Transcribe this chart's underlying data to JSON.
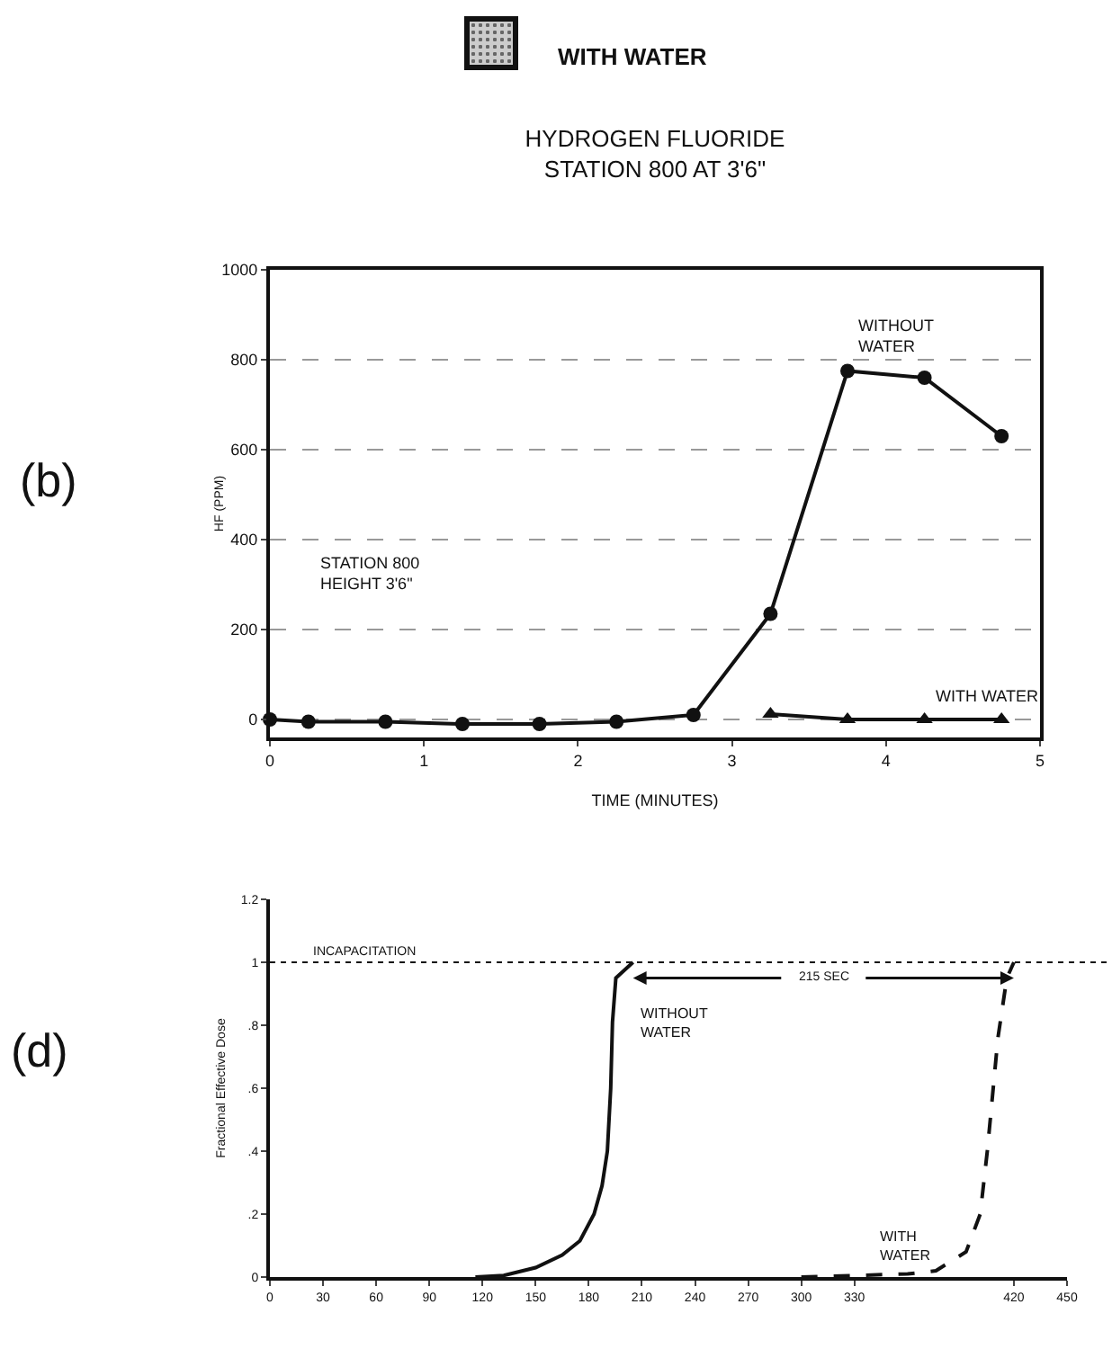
{
  "chart_data": [
    {
      "type": "line",
      "title": "HYDROGEN FLUORIDE",
      "subtitle": "STATION 800 AT 3'6\"",
      "xlabel": "TIME (MINUTES)",
      "ylabel": "HF (PPM)",
      "x": [
        0,
        0.25,
        0.75,
        1.25,
        1.75,
        2.25,
        2.75,
        3.25,
        3.75,
        4.25,
        4.75
      ],
      "series": [
        {
          "color": "#111111",
          "marker": "circle",
          "values": [
            0,
            -5,
            -5,
            -10,
            -10,
            -5,
            10,
            235,
            775,
            760,
            630
          ]
        },
        {
          "color": "#111111",
          "marker": "triangle",
          "values": [
            null,
            null,
            null,
            null,
            null,
            null,
            null,
            12,
            0,
            0,
            0
          ]
        }
      ],
      "xlim": [
        0,
        5
      ],
      "xticks": [
        0,
        1,
        2,
        3,
        4,
        5
      ],
      "ylim": [
        -40,
        1000
      ],
      "yticks": [
        0,
        200,
        400,
        600,
        800,
        1000
      ],
      "grid": "y",
      "annotations": [
        "(b)",
        "WITH WATER",
        {
          "text": "WITHOUT\nWATER",
          "x": 3.75,
          "y": 775
        },
        {
          "text": "WITH WATER",
          "x": 4.25,
          "y": 0
        },
        "STATION 800\nHEIGHT 3'6\""
      ]
    },
    {
      "type": "line",
      "ylabel": "Fractional Effective Dose",
      "series": [
        {
          "color": "#111111",
          "line_style": "solid",
          "x": [
            116,
            132,
            150,
            165,
            175,
            183,
            187.5,
            190.5,
            192.4,
            193.4,
            195.3,
            205
          ],
          "values": [
            0,
            0.005,
            0.03,
            0.07,
            0.115,
            0.2,
            0.29,
            0.4,
            0.6,
            0.81,
            0.95,
            1.0
          ]
        },
        {
          "color": "#111111",
          "line_style": "dashed",
          "x": [
            300,
            330,
            360,
            376,
            393,
            401,
            405,
            411,
            416,
            420
          ],
          "values": [
            0,
            0.005,
            0.01,
            0.02,
            0.08,
            0.2,
            0.4,
            0.76,
            0.95,
            1.0
          ]
        }
      ],
      "xlim": [
        0,
        450
      ],
      "xticks": [
        0,
        30,
        60,
        90,
        120,
        150,
        180,
        210,
        240,
        270,
        300,
        330,
        420,
        450
      ],
      "ylim": [
        0,
        1.2
      ],
      "yticks": [
        0,
        {
          "value": 0.2,
          "label": ".2"
        },
        {
          "value": 0.4,
          "label": ".4"
        },
        {
          "value": 0.6,
          "label": ".6"
        },
        {
          "value": 0.8,
          "label": ".8"
        },
        1,
        {
          "value": 1.2,
          "label": "1.2"
        }
      ],
      "grid": false,
      "ref_lines": [
        {
          "axis": "y",
          "value": 1,
          "label": "INCAPACITATION",
          "line_style": "dotted"
        }
      ],
      "annotations": [
        "(d)",
        {
          "text": "215 SEC",
          "x": 312.5,
          "y": 0.95
        },
        "WITHOUT\nWATER",
        "WITH\nWATER"
      ]
    }
  ]
}
